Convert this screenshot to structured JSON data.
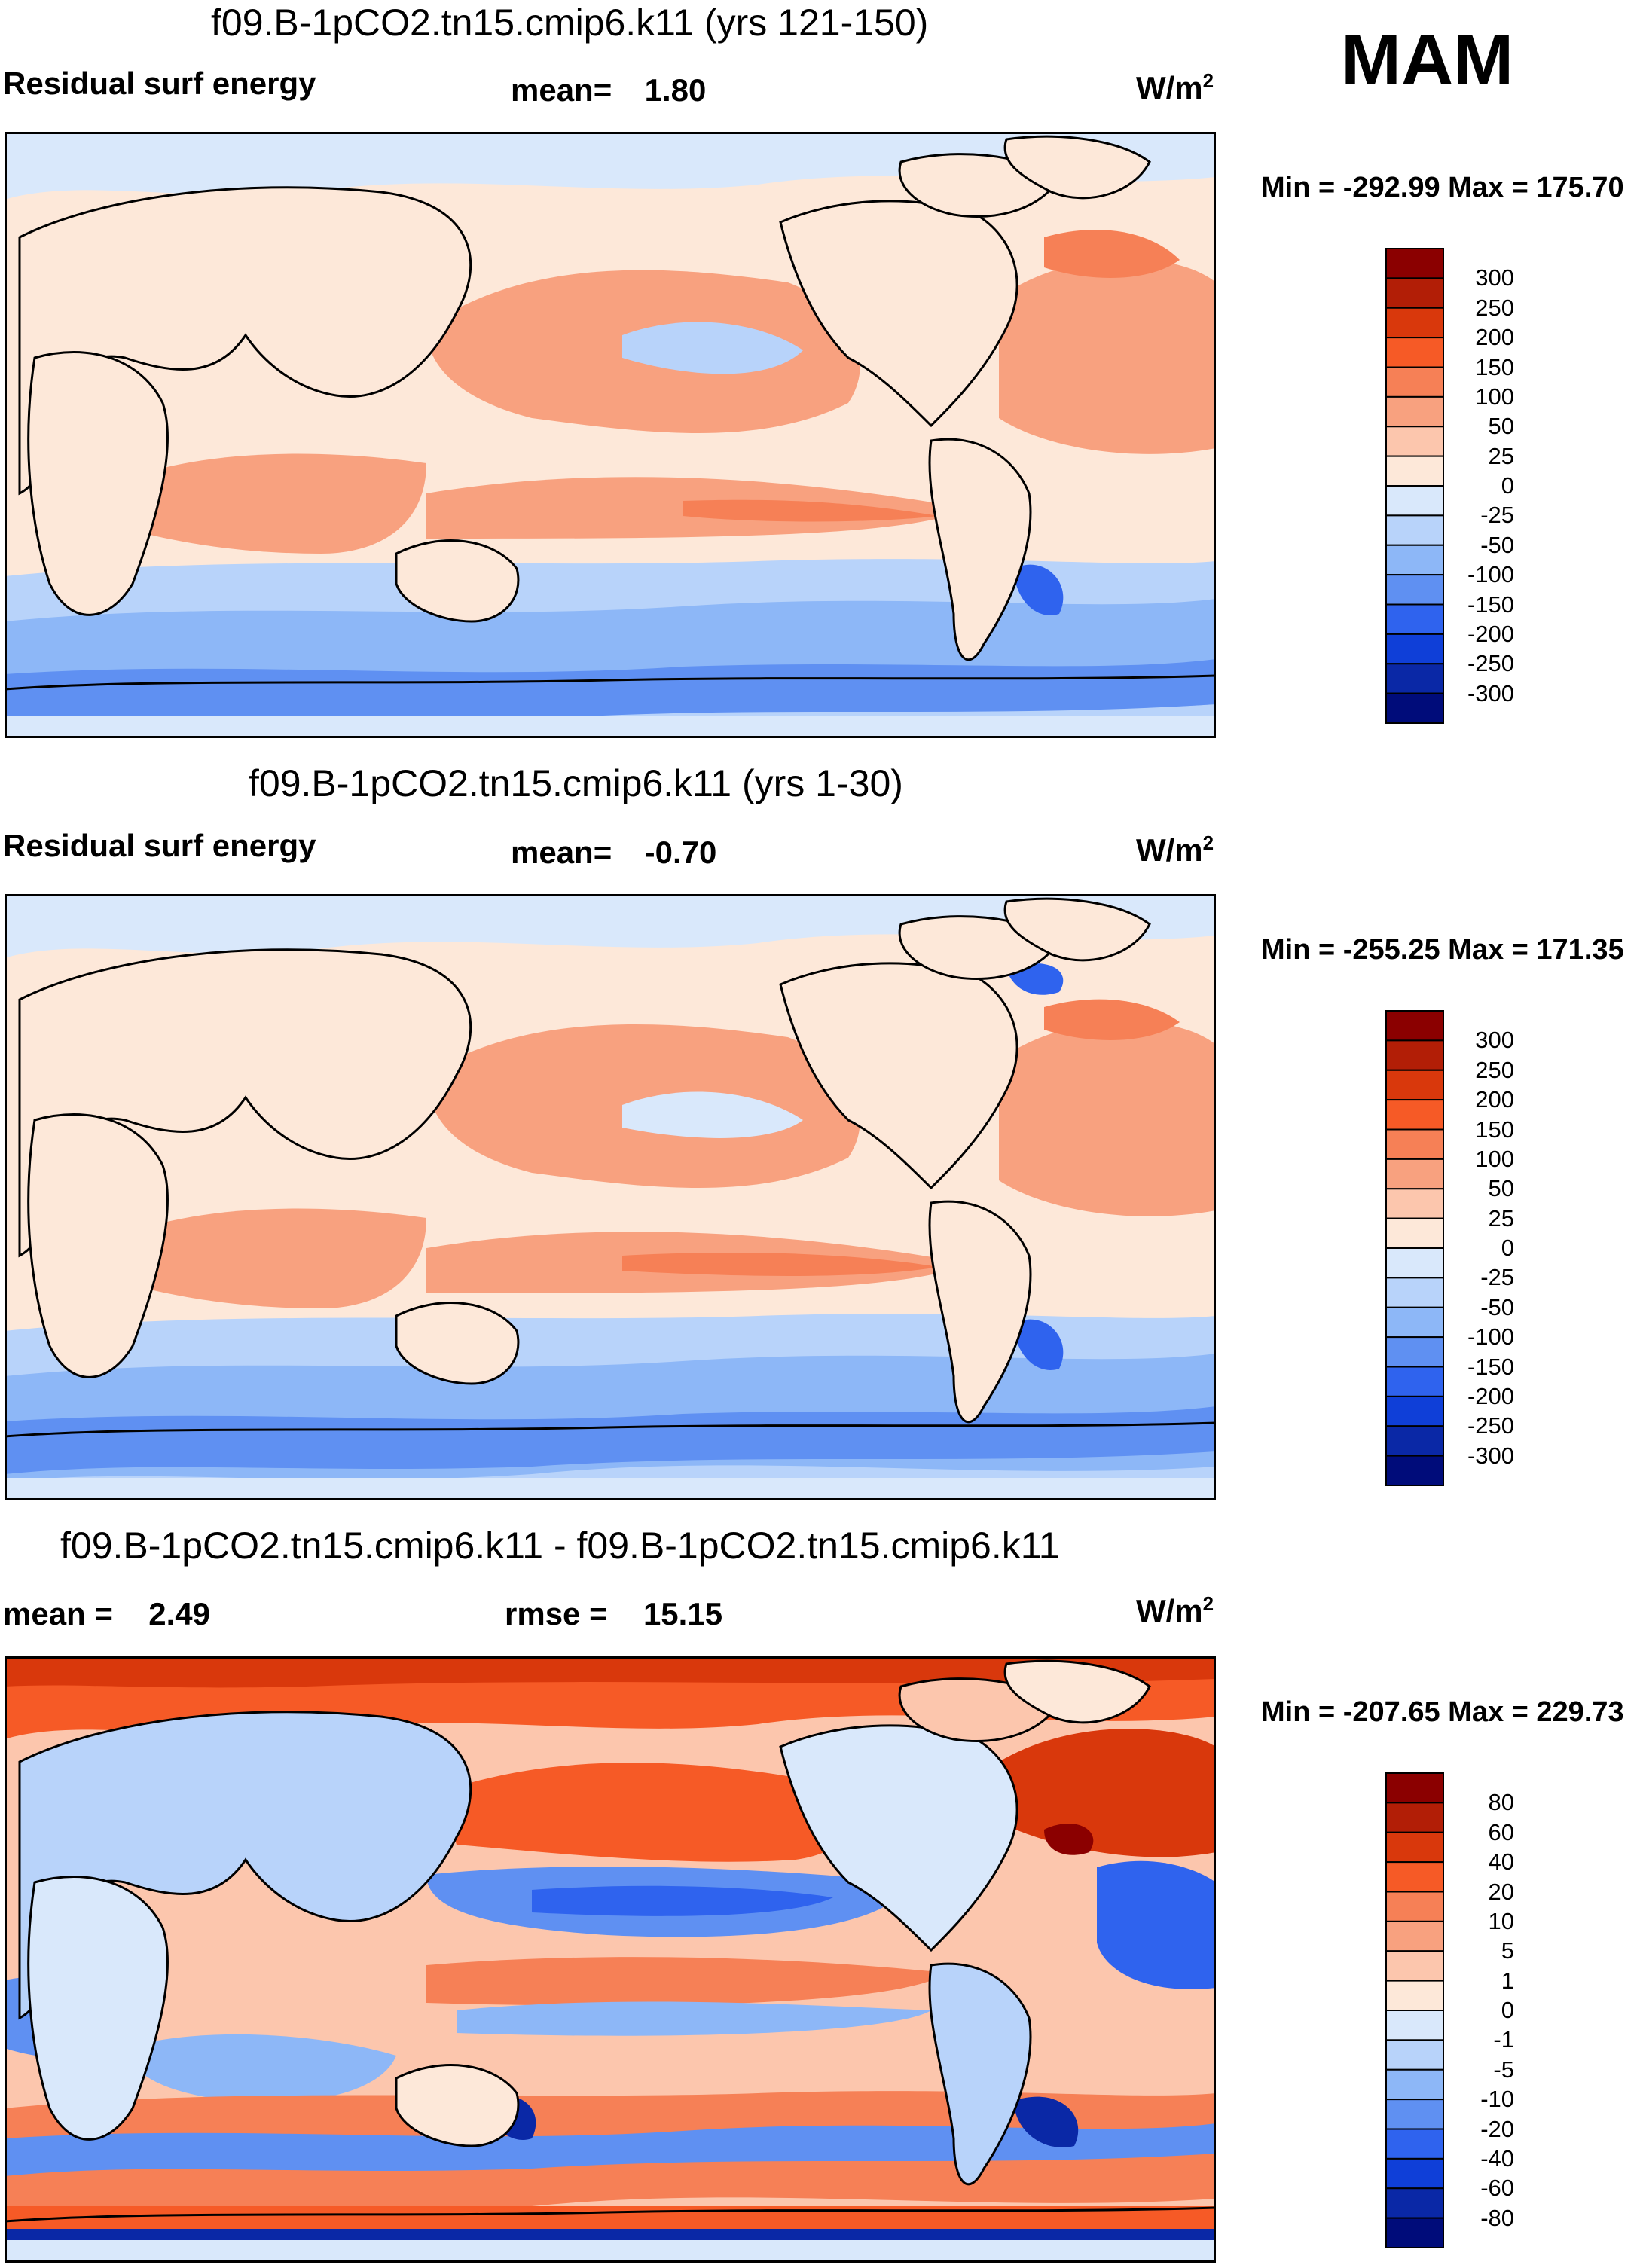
{
  "season": "MAM",
  "units_base": "W/m",
  "units_exp": "2",
  "panels": [
    {
      "title": "f09.B-1pCO2.tn15.cmip6.k11 (yrs 121-150)",
      "left_label": "Residual surf energy",
      "stat_label": "mean=",
      "stat_value": "1.80",
      "minmax": "Min = -292.99 Max = 175.70",
      "colorbar": {
        "ticks": [
          "300",
          "250",
          "200",
          "150",
          "100",
          "50",
          "25",
          "0",
          "-25",
          "-50",
          "-100",
          "-150",
          "-200",
          "-250",
          "-300"
        ],
        "colors": [
          "#8b0000",
          "#b21e06",
          "#d9380c",
          "#f65a26",
          "#f68056",
          "#f8a17f",
          "#fcc6ad",
          "#fde8d9",
          "#d9e8fb",
          "#b8d3fa",
          "#8db7f7",
          "#5f90f2",
          "#2f63ee",
          "#0f3fd8",
          "#0a28a6",
          "#000c7a"
        ]
      }
    },
    {
      "title": "f09.B-1pCO2.tn15.cmip6.k11 (yrs 1-30)",
      "left_label": "Residual surf energy",
      "stat_label": "mean=",
      "stat_value": "-0.70",
      "minmax": "Min = -255.25 Max = 171.35",
      "colorbar": {
        "ticks": [
          "300",
          "250",
          "200",
          "150",
          "100",
          "50",
          "25",
          "0",
          "-25",
          "-50",
          "-100",
          "-150",
          "-200",
          "-250",
          "-300"
        ],
        "colors": [
          "#8b0000",
          "#b21e06",
          "#d9380c",
          "#f65a26",
          "#f68056",
          "#f8a17f",
          "#fcc6ad",
          "#fde8d9",
          "#d9e8fb",
          "#b8d3fa",
          "#8db7f7",
          "#5f90f2",
          "#2f63ee",
          "#0f3fd8",
          "#0a28a6",
          "#000c7a"
        ]
      }
    },
    {
      "title": "f09.B-1pCO2.tn15.cmip6.k11 - f09.B-1pCO2.tn15.cmip6.k11",
      "left_label": "mean =",
      "left_value": "2.49",
      "stat_label": "rmse =",
      "stat_value": "15.15",
      "minmax": "Min = -207.65 Max = 229.73",
      "colorbar": {
        "ticks": [
          "80",
          "60",
          "40",
          "20",
          "10",
          "5",
          "1",
          "0",
          "-1",
          "-5",
          "-10",
          "-20",
          "-40",
          "-60",
          "-80"
        ],
        "colors": [
          "#8b0000",
          "#b21e06",
          "#d9380c",
          "#f65a26",
          "#f68056",
          "#f8a17f",
          "#fcc6ad",
          "#fde8d9",
          "#d9e8fb",
          "#b8d3fa",
          "#8db7f7",
          "#5f90f2",
          "#2f63ee",
          "#0f3fd8",
          "#0a28a6",
          "#000c7a"
        ]
      }
    }
  ]
}
